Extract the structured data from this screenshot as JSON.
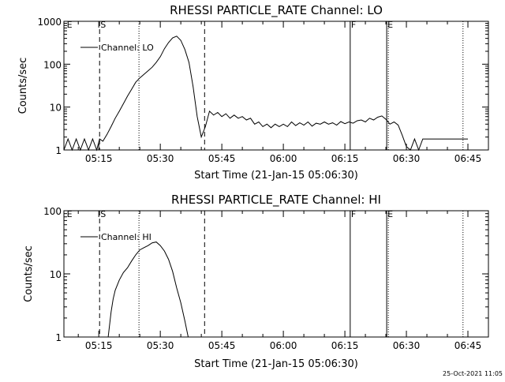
{
  "footer": {
    "timestamp": "25-Oct-2021 11:05"
  },
  "chart_data": [
    {
      "type": "line",
      "title": "RHESSI PARTICLE_RATE Channel: LO",
      "xlabel": "Start Time (21-Jan-15 05:06:30)",
      "ylabel": "Counts/sec",
      "yscale": "log",
      "xlim_minutes": [
        306.5,
        410
      ],
      "ylim": [
        1,
        1000
      ],
      "xtick_labels": [
        "05:15",
        "05:30",
        "05:45",
        "06:00",
        "06:15",
        "06:30",
        "06:45"
      ],
      "ytick_labels": [
        "1",
        "10",
        "100",
        "1000"
      ],
      "legend": {
        "position": "top-left",
        "entries": [
          "Channel: LO"
        ]
      },
      "markers": [
        {
          "x": 307.0,
          "style": "none",
          "label": "E"
        },
        {
          "x": 315.2,
          "style": "dashed",
          "label": "S"
        },
        {
          "x": 324.8,
          "style": "dotted",
          "label": ""
        },
        {
          "x": 340.8,
          "style": "dashed",
          "label": ""
        },
        {
          "x": 376.3,
          "style": "solid",
          "label": "F"
        },
        {
          "x": 385.2,
          "style": "solid",
          "label": "E"
        },
        {
          "x": 385.6,
          "style": "dotted",
          "label": ""
        },
        {
          "x": 403.8,
          "style": "dotted",
          "label": ""
        }
      ],
      "x": [
        306.5,
        307.5,
        308.5,
        309.5,
        310.5,
        311.5,
        312.5,
        313.5,
        314.5,
        315.2,
        316,
        317,
        318,
        319,
        320,
        321,
        322,
        323,
        324,
        325,
        326,
        327,
        328,
        329,
        330,
        331,
        332,
        333,
        334,
        335,
        336,
        337,
        338,
        339,
        340,
        341,
        342,
        343,
        344,
        345,
        346,
        347,
        348,
        349,
        350,
        351,
        352,
        353,
        354,
        355,
        356,
        357,
        358,
        359,
        360,
        361,
        362,
        363,
        364,
        365,
        366,
        367,
        368,
        369,
        370,
        371,
        372,
        373,
        374,
        375,
        376,
        377,
        378,
        379,
        380,
        381,
        382,
        383,
        384,
        385,
        386,
        387,
        388,
        389,
        390,
        391,
        392,
        393,
        394,
        395,
        396,
        397,
        398,
        399,
        400,
        401,
        402,
        403,
        404,
        405
      ],
      "values": [
        1,
        1.8,
        1,
        1.8,
        1,
        1.8,
        1,
        1.8,
        1,
        1.8,
        1.6,
        2.3,
        3.5,
        5.5,
        8,
        12,
        18,
        26,
        38,
        48,
        58,
        70,
        85,
        110,
        150,
        230,
        320,
        410,
        450,
        360,
        220,
        110,
        30,
        6,
        2,
        3.5,
        8,
        6.5,
        7.5,
        6,
        7,
        5.5,
        6.5,
        5.5,
        6,
        5,
        5.5,
        4,
        4.5,
        3.5,
        4,
        3.3,
        4,
        3.5,
        4,
        3.5,
        4.5,
        3.7,
        4.3,
        3.8,
        4.5,
        3.6,
        4.2,
        4,
        4.5,
        4,
        4.3,
        3.8,
        4.6,
        4.1,
        4.5,
        4.2,
        4.8,
        5,
        4.5,
        5.5,
        5,
        5.8,
        6.2,
        5.2,
        4,
        4.5,
        3.8,
        2.2,
        1.2,
        1,
        1.8,
        1,
        1.8,
        1.8,
        1.8,
        1.8,
        1.8,
        1.8,
        1.8,
        1.8,
        1.8,
        1.8,
        1.8,
        1.8
      ]
    },
    {
      "type": "line",
      "title": "RHESSI PARTICLE_RATE Channel: HI",
      "xlabel": "Start Time (21-Jan-15 05:06:30)",
      "ylabel": "Counts/sec",
      "yscale": "log",
      "xlim_minutes": [
        306.5,
        410
      ],
      "ylim": [
        1,
        100
      ],
      "xtick_labels": [
        "05:15",
        "05:30",
        "05:45",
        "06:00",
        "06:15",
        "06:30",
        "06:45"
      ],
      "ytick_labels": [
        "1",
        "10",
        "100"
      ],
      "legend": {
        "position": "top-left",
        "entries": [
          "Channel: HI"
        ]
      },
      "markers": [
        {
          "x": 307.0,
          "style": "none",
          "label": "E"
        },
        {
          "x": 315.2,
          "style": "dashed",
          "label": "S"
        },
        {
          "x": 324.8,
          "style": "dotted",
          "label": ""
        },
        {
          "x": 340.8,
          "style": "dashed",
          "label": ""
        },
        {
          "x": 376.3,
          "style": "solid",
          "label": "F"
        },
        {
          "x": 385.2,
          "style": "solid",
          "label": "E"
        },
        {
          "x": 385.6,
          "style": "dotted",
          "label": ""
        },
        {
          "x": 403.8,
          "style": "dotted",
          "label": ""
        }
      ],
      "x": [
        317.3,
        318,
        318.5,
        319,
        320,
        321,
        322,
        323,
        324,
        325,
        326,
        327,
        328,
        329,
        330,
        331,
        332,
        333,
        334,
        335,
        336,
        336.8
      ],
      "values": [
        1,
        2.5,
        4,
        5.5,
        8,
        10.5,
        12.5,
        16,
        20,
        24,
        26,
        28,
        31,
        32,
        28,
        23,
        17,
        11,
        6,
        3.5,
        1.8,
        1
      ]
    }
  ]
}
